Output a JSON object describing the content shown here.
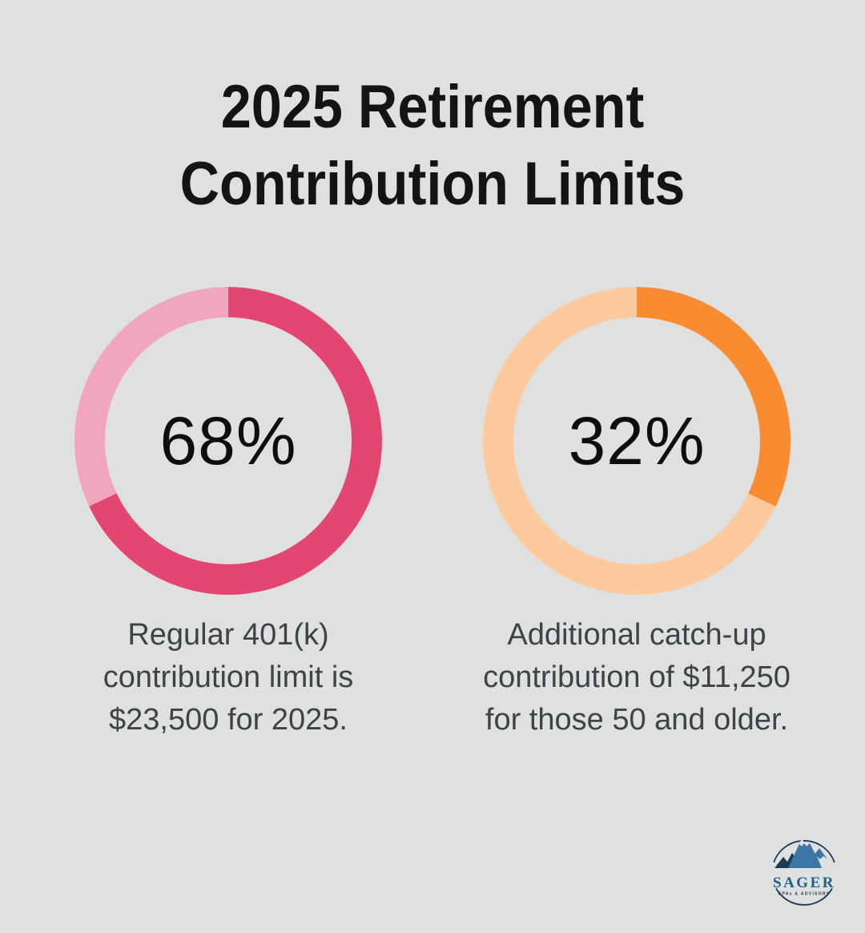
{
  "title": {
    "text": "2025 Retirement Contribution Limits",
    "lines": [
      "2025 Retirement",
      "Contribution Limits"
    ]
  },
  "chart_data": [
    {
      "type": "pie",
      "donut": true,
      "percent": 68,
      "values": [
        68,
        32
      ],
      "slice_colors": [
        "#e3466f",
        "#f2a6be"
      ],
      "fill_color": "#e3466f",
      "track_color": "#f2a6be",
      "center_label": "68%",
      "start": "top",
      "direction": "clockwise",
      "legend": "none",
      "caption": "Regular 401(k) contribution limit is $23,500 for 2025.",
      "caption_lines": [
        "Regular 401(k)",
        "contribution limit is",
        "$23,500 for 2025."
      ]
    },
    {
      "type": "pie",
      "donut": true,
      "percent": 32,
      "values": [
        32,
        68
      ],
      "slice_colors": [
        "#f98b30",
        "#fdca9d"
      ],
      "fill_color": "#f98b30",
      "track_color": "#fdca9d",
      "center_label": "32%",
      "start": "top",
      "direction": "clockwise",
      "legend": "none",
      "caption": "Additional catch-up contribution of $11,250 for those 50 and older.",
      "caption_lines": [
        "Additional catch-up",
        "contribution of $11,250",
        "for those 50 and older."
      ]
    }
  ],
  "logo": {
    "name": "SAGER",
    "tagline": "CPAs & ADVISORS",
    "navy": "#1d3a55",
    "accent_blue": "#3a77a6",
    "snow": "#dfe0e0",
    "wordmark_color": "#1f6089"
  },
  "colors": {
    "background": "#dfe0e0",
    "title": "#141414",
    "caption": "#3e4347",
    "percent_label": "#0d0d0d"
  }
}
